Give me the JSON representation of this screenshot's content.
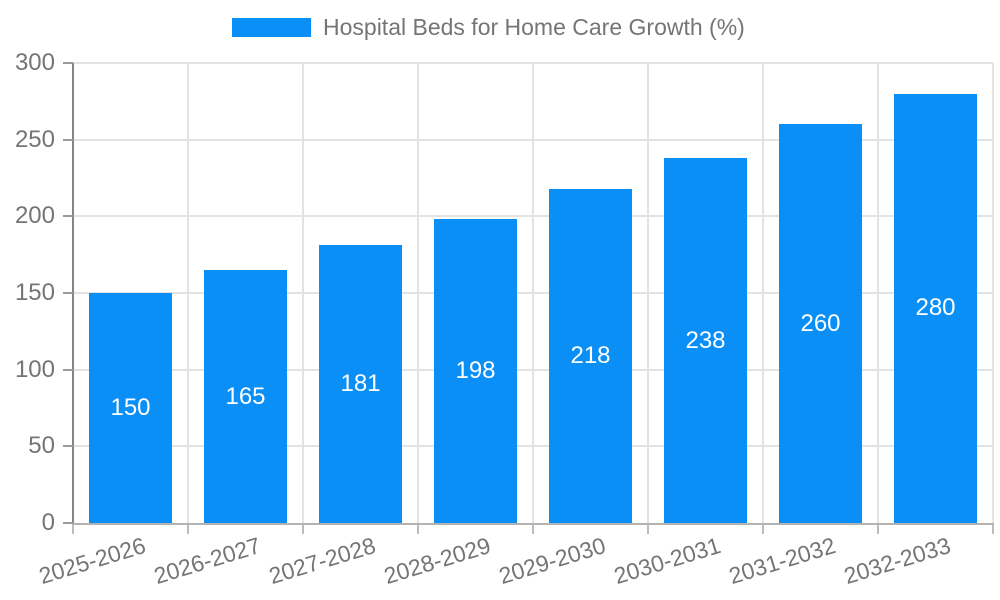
{
  "legend": {
    "label": "Hospital Beds for Home Care Growth (%)"
  },
  "chart_data": {
    "type": "bar",
    "title": "Hospital Beds for Home Care Growth (%)",
    "legend": [
      "Hospital Beds for Home Care Growth (%)"
    ],
    "legend_position": "top",
    "categories": [
      "2025-2026",
      "2026-2027",
      "2027-2028",
      "2028-2029",
      "2029-2030",
      "2030-2031",
      "2031-2032",
      "2032-2033"
    ],
    "values": [
      150,
      165,
      181,
      198,
      218,
      238,
      260,
      280
    ],
    "xlabel": "",
    "ylabel": "",
    "ylim": [
      0,
      300
    ],
    "yticks": [
      0,
      50,
      100,
      150,
      200,
      250,
      300
    ],
    "grid": true,
    "bar_color": "#0a8ff7",
    "bar_label_color": "#ffffff",
    "axis_text_color": "#757575",
    "grid_color": "#e3e3e3",
    "background_color": "#ffffff"
  }
}
